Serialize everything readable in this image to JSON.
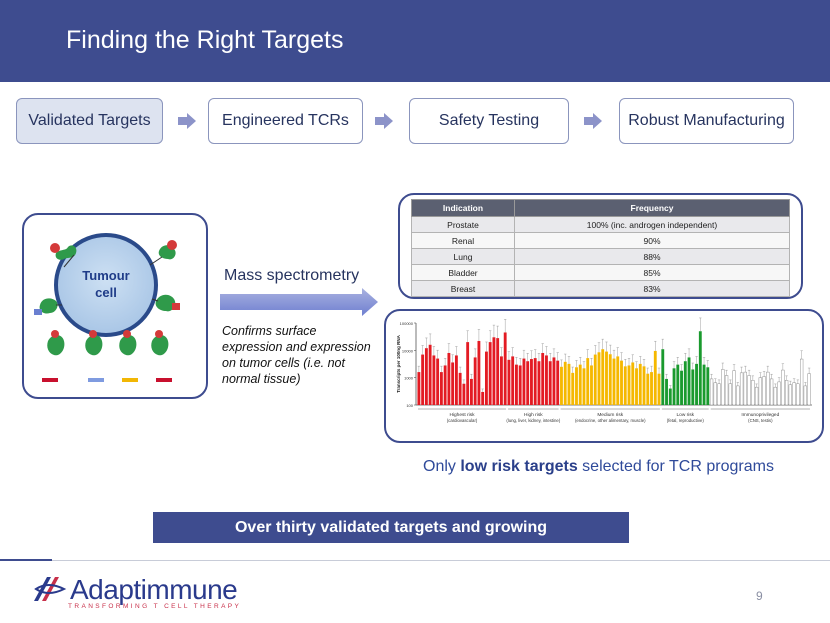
{
  "header": {
    "title": "Finding the Right Targets"
  },
  "steps": [
    {
      "label": "Validated Targets"
    },
    {
      "label": "Engineered TCRs"
    },
    {
      "label": "Safety Testing"
    },
    {
      "label": "Robust Manufacturing"
    }
  ],
  "cell": {
    "label_line1": "Tumour",
    "label_line2": "cell"
  },
  "mass_spec": {
    "label": "Mass spectrometry",
    "description": "Confirms surface expression and expression on tumor cells (i.e. not normal tissue)"
  },
  "indication_table": {
    "headers": [
      "Indication",
      "Frequency"
    ],
    "rows": [
      [
        "Prostate",
        "100% (inc. androgen independent)"
      ],
      [
        "Renal",
        "90%"
      ],
      [
        "Lung",
        "88%"
      ],
      [
        "Bladder",
        "85%"
      ],
      [
        "Breast",
        "83%"
      ]
    ]
  },
  "chart_data": {
    "type": "bar",
    "ylabel": "Transcripts per 100ng RNA",
    "yticks": [
      "100000",
      "10000",
      "1000",
      "100"
    ],
    "yscale": "log",
    "ylim": [
      100,
      100000
    ],
    "groups": [
      {
        "label_line1": "Highest risk",
        "label_line2": "(cardiovascular)",
        "color": "#e31b23",
        "values": [
          1600,
          7000,
          12000,
          16000,
          6500,
          5000,
          1600,
          2800,
          8000,
          3600,
          6500,
          1500,
          600,
          20000,
          900,
          5500,
          22000,
          300,
          9000,
          20000,
          30000,
          28000,
          6000,
          45000
        ]
      },
      {
        "label_line1": "High risk",
        "label_line2": "(lung, liver, kidney, intestine)",
        "color": "#e31b23",
        "values": [
          4500,
          6000,
          3000,
          2800,
          5000,
          4000,
          4800,
          5200,
          4000,
          8000,
          6500,
          4000,
          5500,
          4200
        ]
      },
      {
        "label_line1": "Medium risk",
        "label_line2": "(endocrine, other alimentary, muscle)",
        "color": "#f5b800",
        "values": [
          2500,
          3800,
          3200,
          1500,
          2400,
          3000,
          2200,
          5200,
          2800,
          7000,
          8500,
          11000,
          9000,
          7200,
          5000,
          6000,
          4200,
          2600,
          2800,
          3600,
          2200,
          3200,
          2600,
          1400,
          1600,
          9500,
          1400
        ]
      },
      {
        "label_line1": "Low risk",
        "label_line2": "(fetal, reproductive)",
        "color": "#1a9a2e",
        "values": [
          11000,
          900,
          400,
          2200,
          3000,
          1800,
          4000,
          5500,
          2000,
          3200,
          50000,
          3000,
          2400
        ]
      },
      {
        "label_line1": "Immunoprivileged",
        "label_line2": "(CNS, testis)",
        "color": "#ffffff",
        "values": [
          900,
          650,
          600,
          2000,
          1200,
          600,
          1800,
          500,
          1500,
          1600,
          1200,
          800,
          450,
          1000,
          1100,
          1600,
          900,
          450,
          700,
          1900,
          800,
          550,
          650,
          600,
          4800,
          500,
          1400
        ]
      }
    ]
  },
  "caption": {
    "prefix": "Only ",
    "bold": "low risk targets",
    "suffix": " selected for TCR programs"
  },
  "banner": {
    "text": "Over thirty validated targets and growing"
  },
  "footer": {
    "logo_name": "Adaptimmune",
    "logo_tagline": "TRANSFORMING T CELL THERAPY",
    "page_number": "9"
  },
  "colors": {
    "brand_navy": "#3e4c8f",
    "accent_red": "#c8304a",
    "risk_red": "#e31b23",
    "risk_yellow": "#f5b800",
    "risk_green": "#1a9a2e"
  }
}
